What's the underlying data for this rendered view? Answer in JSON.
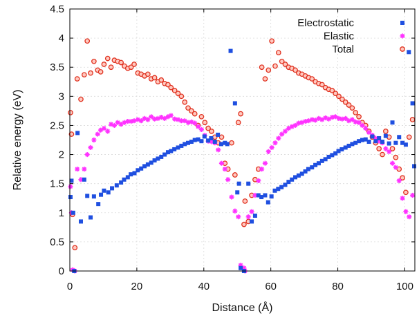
{
  "chart_data": {
    "type": "scatter",
    "xlabel": "Distance (Å)",
    "ylabel": "Relative energy (eV)",
    "xlim": [
      0,
      103
    ],
    "ylim": [
      0,
      4.5
    ],
    "xticks": [
      "0",
      "20",
      "40",
      "60",
      "80",
      "100"
    ],
    "yticks": [
      "0",
      "0.5",
      "1",
      "1.5",
      "2",
      "2.5",
      "3",
      "3.5",
      "4",
      "4.5"
    ],
    "grid": true,
    "legend_position": "top-right",
    "series": [
      {
        "name": "Electrostatic",
        "marker": "square",
        "color": "#1f4fe0",
        "points": [
          [
            0.2,
            1.27
          ],
          [
            0.5,
            1.55
          ],
          [
            1.0,
            1.0
          ],
          [
            1.3,
            0.0
          ],
          [
            2.3,
            2.37
          ],
          [
            3.3,
            0.85
          ],
          [
            4.3,
            1.57
          ],
          [
            5.2,
            1.29
          ],
          [
            6.2,
            0.92
          ],
          [
            7.2,
            1.28
          ],
          [
            8.5,
            1.15
          ],
          [
            9.3,
            1.31
          ],
          [
            10.2,
            1.38
          ],
          [
            11.5,
            1.35
          ],
          [
            12.6,
            1.42
          ],
          [
            14.0,
            1.47
          ],
          [
            15.3,
            1.52
          ],
          [
            16.2,
            1.57
          ],
          [
            17.3,
            1.61
          ],
          [
            18.2,
            1.66
          ],
          [
            19.3,
            1.68
          ],
          [
            20.3,
            1.73
          ],
          [
            21.3,
            1.76
          ],
          [
            22.3,
            1.8
          ],
          [
            23.3,
            1.83
          ],
          [
            24.3,
            1.86
          ],
          [
            25.3,
            1.9
          ],
          [
            26.3,
            1.93
          ],
          [
            27.3,
            1.96
          ],
          [
            28.3,
            2.0
          ],
          [
            29.3,
            2.04
          ],
          [
            30.2,
            2.06
          ],
          [
            31.2,
            2.09
          ],
          [
            32.3,
            2.12
          ],
          [
            33.3,
            2.15
          ],
          [
            34.3,
            2.18
          ],
          [
            35.3,
            2.2
          ],
          [
            36.3,
            2.22
          ],
          [
            37.3,
            2.25
          ],
          [
            38.3,
            2.26
          ],
          [
            39.3,
            2.23
          ],
          [
            40.2,
            2.31
          ],
          [
            41.3,
            2.24
          ],
          [
            42.2,
            2.28
          ],
          [
            43.3,
            2.22
          ],
          [
            44.2,
            2.34
          ],
          [
            45.2,
            2.18
          ],
          [
            46.3,
            2.2
          ],
          [
            47.0,
            2.18
          ],
          [
            48.0,
            3.78
          ],
          [
            49.3,
            2.88
          ],
          [
            50.0,
            1.35
          ],
          [
            50.5,
            1.5
          ],
          [
            51.0,
            0.05
          ],
          [
            52.0,
            0.0
          ],
          [
            53.3,
            1.5
          ],
          [
            54.3,
            0.85
          ],
          [
            55.3,
            0.95
          ],
          [
            56.3,
            1.3
          ],
          [
            57.2,
            1.27
          ],
          [
            58.3,
            1.3
          ],
          [
            59.2,
            1.18
          ],
          [
            60.2,
            1.28
          ],
          [
            61.2,
            1.38
          ],
          [
            62.2,
            1.41
          ],
          [
            63.2,
            1.44
          ],
          [
            64.3,
            1.48
          ],
          [
            65.3,
            1.53
          ],
          [
            66.3,
            1.57
          ],
          [
            67.3,
            1.61
          ],
          [
            68.3,
            1.64
          ],
          [
            69.3,
            1.67
          ],
          [
            70.3,
            1.71
          ],
          [
            71.2,
            1.75
          ],
          [
            72.3,
            1.78
          ],
          [
            73.3,
            1.82
          ],
          [
            74.3,
            1.85
          ],
          [
            75.3,
            1.89
          ],
          [
            76.3,
            1.92
          ],
          [
            77.3,
            1.96
          ],
          [
            78.3,
            1.99
          ],
          [
            79.3,
            2.02
          ],
          [
            80.2,
            2.06
          ],
          [
            81.2,
            2.09
          ],
          [
            82.3,
            2.12
          ],
          [
            83.3,
            2.15
          ],
          [
            84.3,
            2.18
          ],
          [
            85.3,
            2.2
          ],
          [
            86.3,
            2.23
          ],
          [
            87.3,
            2.25
          ],
          [
            88.3,
            2.26
          ],
          [
            89.3,
            2.22
          ],
          [
            90.3,
            2.31
          ],
          [
            91.3,
            2.23
          ],
          [
            92.3,
            2.28
          ],
          [
            93.3,
            2.22
          ],
          [
            94.3,
            2.32
          ],
          [
            95.3,
            2.19
          ],
          [
            96.3,
            2.55
          ],
          [
            97.3,
            2.2
          ],
          [
            98.3,
            2.3
          ],
          [
            99.3,
            2.2
          ],
          [
            100.3,
            2.17
          ],
          [
            101.2,
            3.76
          ],
          [
            102.3,
            2.88
          ],
          [
            102.8,
            1.8
          ]
        ]
      },
      {
        "name": "Elastic",
        "marker": "star",
        "color": "#ff33ff",
        "points": [
          [
            0.2,
            1.45
          ],
          [
            0.5,
            1.0
          ],
          [
            0.8,
            0.02
          ],
          [
            1.5,
            0.0
          ],
          [
            2.2,
            1.75
          ],
          [
            3.3,
            1.57
          ],
          [
            4.3,
            1.75
          ],
          [
            5.2,
            2.0
          ],
          [
            6.2,
            2.12
          ],
          [
            7.2,
            2.25
          ],
          [
            8.3,
            2.35
          ],
          [
            9.2,
            2.42
          ],
          [
            10.2,
            2.45
          ],
          [
            11.3,
            2.4
          ],
          [
            12.3,
            2.52
          ],
          [
            13.3,
            2.5
          ],
          [
            14.3,
            2.55
          ],
          [
            15.3,
            2.52
          ],
          [
            16.3,
            2.55
          ],
          [
            17.3,
            2.57
          ],
          [
            18.3,
            2.57
          ],
          [
            19.2,
            2.58
          ],
          [
            20.3,
            2.6
          ],
          [
            21.3,
            2.58
          ],
          [
            22.3,
            2.62
          ],
          [
            23.3,
            2.6
          ],
          [
            24.3,
            2.65
          ],
          [
            25.3,
            2.61
          ],
          [
            26.3,
            2.62
          ],
          [
            27.3,
            2.64
          ],
          [
            28.3,
            2.62
          ],
          [
            29.3,
            2.65
          ],
          [
            30.2,
            2.67
          ],
          [
            31.3,
            2.61
          ],
          [
            32.3,
            2.6
          ],
          [
            33.3,
            2.58
          ],
          [
            34.3,
            2.58
          ],
          [
            35.3,
            2.55
          ],
          [
            36.3,
            2.56
          ],
          [
            37.3,
            2.54
          ],
          [
            38.3,
            2.48
          ],
          [
            39.3,
            2.43
          ],
          [
            40.3,
            2.33
          ],
          [
            41.3,
            2.23
          ],
          [
            42.3,
            2.22
          ],
          [
            43.3,
            2.2
          ],
          [
            44.3,
            2.08
          ],
          [
            45.3,
            1.85
          ],
          [
            46.3,
            1.75
          ],
          [
            47.2,
            1.57
          ],
          [
            48.3,
            1.27
          ],
          [
            49.3,
            1.03
          ],
          [
            50.3,
            0.93
          ],
          [
            51.0,
            0.1
          ],
          [
            52.0,
            0.05
          ],
          [
            52.3,
            0.0
          ],
          [
            53.3,
            0.93
          ],
          [
            54.3,
            1.02
          ],
          [
            55.3,
            1.3
          ],
          [
            56.3,
            1.55
          ],
          [
            57.3,
            1.75
          ],
          [
            58.3,
            1.85
          ],
          [
            59.3,
            2.05
          ],
          [
            60.3,
            2.12
          ],
          [
            61.3,
            2.2
          ],
          [
            62.3,
            2.28
          ],
          [
            63.3,
            2.35
          ],
          [
            64.3,
            2.4
          ],
          [
            65.3,
            2.45
          ],
          [
            66.3,
            2.48
          ],
          [
            67.3,
            2.5
          ],
          [
            68.3,
            2.54
          ],
          [
            69.3,
            2.55
          ],
          [
            70.3,
            2.57
          ],
          [
            71.3,
            2.58
          ],
          [
            72.3,
            2.6
          ],
          [
            73.3,
            2.59
          ],
          [
            74.3,
            2.62
          ],
          [
            75.3,
            2.6
          ],
          [
            76.3,
            2.63
          ],
          [
            77.3,
            2.61
          ],
          [
            78.3,
            2.64
          ],
          [
            79.3,
            2.65
          ],
          [
            80.3,
            2.62
          ],
          [
            81.3,
            2.61
          ],
          [
            82.3,
            2.62
          ],
          [
            83.3,
            2.58
          ],
          [
            84.3,
            2.6
          ],
          [
            85.3,
            2.56
          ],
          [
            86.3,
            2.55
          ],
          [
            87.3,
            2.5
          ],
          [
            88.3,
            2.45
          ],
          [
            89.3,
            2.38
          ],
          [
            90.3,
            2.33
          ],
          [
            91.3,
            2.28
          ],
          [
            92.3,
            2.23
          ],
          [
            93.3,
            2.2
          ],
          [
            94.3,
            2.1
          ],
          [
            95.3,
            2.05
          ],
          [
            96.3,
            1.85
          ],
          [
            97.3,
            1.78
          ],
          [
            98.3,
            1.55
          ],
          [
            99.3,
            1.25
          ],
          [
            100.3,
            1.02
          ],
          [
            101.3,
            0.93
          ],
          [
            102.3,
            1.3
          ]
        ]
      },
      {
        "name": "Total",
        "marker": "circle",
        "color": "#e0301e",
        "points": [
          [
            0.2,
            2.72
          ],
          [
            0.5,
            2.35
          ],
          [
            0.8,
            0.97
          ],
          [
            1.5,
            0.4
          ],
          [
            2.2,
            3.3
          ],
          [
            3.3,
            2.95
          ],
          [
            4.3,
            3.37
          ],
          [
            5.2,
            3.95
          ],
          [
            6.2,
            3.4
          ],
          [
            7.2,
            3.6
          ],
          [
            8.3,
            3.45
          ],
          [
            9.2,
            3.42
          ],
          [
            10.2,
            3.55
          ],
          [
            11.3,
            3.65
          ],
          [
            12.3,
            3.5
          ],
          [
            13.3,
            3.62
          ],
          [
            14.3,
            3.6
          ],
          [
            15.3,
            3.58
          ],
          [
            16.3,
            3.52
          ],
          [
            17.3,
            3.48
          ],
          [
            18.3,
            3.5
          ],
          [
            19.2,
            3.55
          ],
          [
            20.3,
            3.4
          ],
          [
            21.3,
            3.38
          ],
          [
            22.3,
            3.35
          ],
          [
            23.3,
            3.38
          ],
          [
            24.3,
            3.3
          ],
          [
            25.3,
            3.32
          ],
          [
            26.3,
            3.25
          ],
          [
            27.3,
            3.28
          ],
          [
            28.3,
            3.22
          ],
          [
            29.3,
            3.2
          ],
          [
            30.2,
            3.15
          ],
          [
            31.3,
            3.1
          ],
          [
            32.3,
            3.05
          ],
          [
            33.3,
            3.0
          ],
          [
            34.3,
            2.9
          ],
          [
            35.3,
            2.8
          ],
          [
            36.3,
            2.75
          ],
          [
            37.3,
            2.7
          ],
          [
            38.3,
            2.5
          ],
          [
            39.3,
            2.65
          ],
          [
            40.3,
            2.55
          ],
          [
            41.3,
            2.45
          ],
          [
            42.3,
            2.4
          ],
          [
            43.3,
            2.3
          ],
          [
            44.3,
            2.2
          ],
          [
            45.3,
            2.3
          ],
          [
            46.3,
            1.85
          ],
          [
            47.2,
            1.75
          ],
          [
            48.3,
            2.2
          ],
          [
            49.3,
            1.65
          ],
          [
            50.3,
            2.55
          ],
          [
            51.0,
            2.7
          ],
          [
            52.0,
            0.8
          ],
          [
            52.3,
            1.2
          ],
          [
            53.3,
            0.85
          ],
          [
            54.3,
            1.3
          ],
          [
            55.3,
            1.57
          ],
          [
            56.3,
            1.75
          ],
          [
            57.3,
            3.5
          ],
          [
            58.3,
            3.3
          ],
          [
            59.3,
            3.45
          ],
          [
            60.3,
            3.95
          ],
          [
            61.3,
            3.52
          ],
          [
            62.3,
            3.75
          ],
          [
            63.3,
            3.6
          ],
          [
            64.3,
            3.55
          ],
          [
            65.3,
            3.5
          ],
          [
            66.3,
            3.48
          ],
          [
            67.3,
            3.45
          ],
          [
            68.3,
            3.4
          ],
          [
            69.3,
            3.38
          ],
          [
            70.3,
            3.35
          ],
          [
            71.3,
            3.32
          ],
          [
            72.3,
            3.3
          ],
          [
            73.3,
            3.25
          ],
          [
            74.3,
            3.22
          ],
          [
            75.3,
            3.2
          ],
          [
            76.3,
            3.15
          ],
          [
            77.3,
            3.12
          ],
          [
            78.3,
            3.1
          ],
          [
            79.3,
            3.05
          ],
          [
            80.3,
            3.0
          ],
          [
            81.3,
            2.95
          ],
          [
            82.3,
            2.9
          ],
          [
            83.3,
            2.85
          ],
          [
            84.3,
            2.8
          ],
          [
            85.3,
            2.72
          ],
          [
            86.3,
            2.65
          ],
          [
            87.3,
            2.55
          ],
          [
            88.3,
            2.5
          ],
          [
            89.3,
            2.4
          ],
          [
            90.3,
            2.3
          ],
          [
            91.3,
            2.2
          ],
          [
            92.3,
            2.1
          ],
          [
            93.3,
            2.0
          ],
          [
            94.3,
            2.4
          ],
          [
            95.3,
            2.3
          ],
          [
            96.3,
            2.1
          ],
          [
            97.3,
            1.95
          ],
          [
            98.3,
            1.75
          ],
          [
            99.3,
            1.6
          ],
          [
            100.3,
            1.35
          ],
          [
            101.3,
            2.3
          ],
          [
            102.3,
            2.6
          ]
        ]
      }
    ]
  }
}
